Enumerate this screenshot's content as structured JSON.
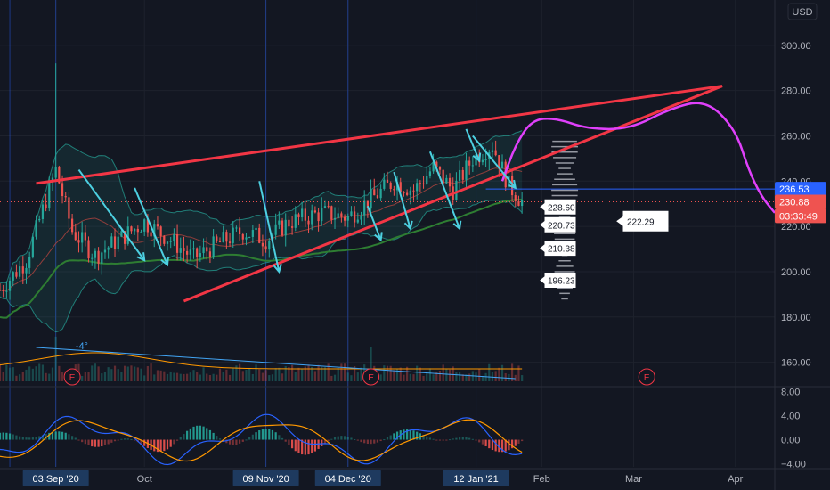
{
  "chart_data": {
    "type": "candlestick",
    "currency_label": "USD",
    "price_ticks": [
      160,
      180,
      200,
      220,
      240,
      260,
      280,
      300
    ],
    "ylim": [
      150,
      320
    ],
    "x_labels": [
      {
        "label": "03 Sep '20",
        "day": 3,
        "highlight": true
      },
      {
        "label": "Oct",
        "day": 30,
        "highlight": false
      },
      {
        "label": "09 Nov '20",
        "day": 67,
        "highlight": true
      },
      {
        "label": "04 Dec '20",
        "day": 92,
        "highlight": true
      },
      {
        "label": "12 Jan '21",
        "day": 131,
        "highlight": true
      },
      {
        "label": "Feb",
        "day": 151,
        "highlight": false
      },
      {
        "label": "Mar",
        "day": 179,
        "highlight": false
      },
      {
        "label": "Apr",
        "day": 210,
        "highlight": false
      }
    ],
    "xlim": [
      -14,
      222
    ],
    "price_tags": [
      {
        "value": "236.53",
        "price": 236.53,
        "color": "#2962ff"
      },
      {
        "value": "230.88",
        "price": 230.88,
        "color": "#ef5350"
      },
      {
        "value": "03:33:49",
        "price": 224.6,
        "color": "#ef5350"
      }
    ],
    "callouts": [
      {
        "label": "228.60",
        "price": 228.6
      },
      {
        "label": "220.73",
        "price": 220.73
      },
      {
        "label": "210.38",
        "price": 210.38
      },
      {
        "label": "196.23",
        "price": 196.23
      }
    ],
    "target_label": "222.29",
    "target_price": 222.29,
    "horizontal_line_price": 236.53,
    "wedge_upper": [
      [
        -3,
        239
      ],
      [
        206,
        282
      ]
    ],
    "wedge_lower": [
      [
        42,
        187
      ],
      [
        206,
        282
      ]
    ],
    "projection": [
      [
        139,
        240
      ],
      [
        143,
        256
      ],
      [
        148,
        267
      ],
      [
        155,
        268
      ],
      [
        165,
        263
      ],
      [
        178,
        263
      ],
      [
        190,
        272
      ],
      [
        201,
        276
      ],
      [
        210,
        263
      ],
      [
        214,
        245
      ],
      [
        218,
        233
      ],
      [
        222,
        226
      ]
    ],
    "arrows": [
      [
        [
          10,
          245
        ],
        [
          30,
          205
        ]
      ],
      [
        [
          27,
          237
        ],
        [
          37,
          203
        ]
      ],
      [
        [
          65,
          240
        ],
        [
          71,
          200
        ]
      ],
      [
        [
          98,
          229
        ],
        [
          102,
          214
        ]
      ],
      [
        [
          106,
          244
        ],
        [
          111,
          219
        ]
      ],
      [
        [
          117,
          253
        ],
        [
          126,
          219
        ]
      ],
      [
        [
          128,
          263
        ],
        [
          132,
          249
        ]
      ],
      [
        [
          130,
          260
        ],
        [
          143,
          237
        ]
      ]
    ],
    "earnings_markers": [
      {
        "label": "E",
        "day": 8
      },
      {
        "label": "E",
        "day": 99
      },
      {
        "label": "E",
        "day": 183
      }
    ],
    "macd": {
      "yticks": [
        {
          "value": 8,
          "label": "8.00"
        },
        {
          "value": 4,
          "label": "4.00"
        },
        {
          "value": 0,
          "label": "0.00"
        },
        {
          "value": -4,
          "label": "−4.00"
        }
      ],
      "ylim": [
        -4.5,
        8.5
      ]
    },
    "volume_trendline_label": "-4°"
  }
}
